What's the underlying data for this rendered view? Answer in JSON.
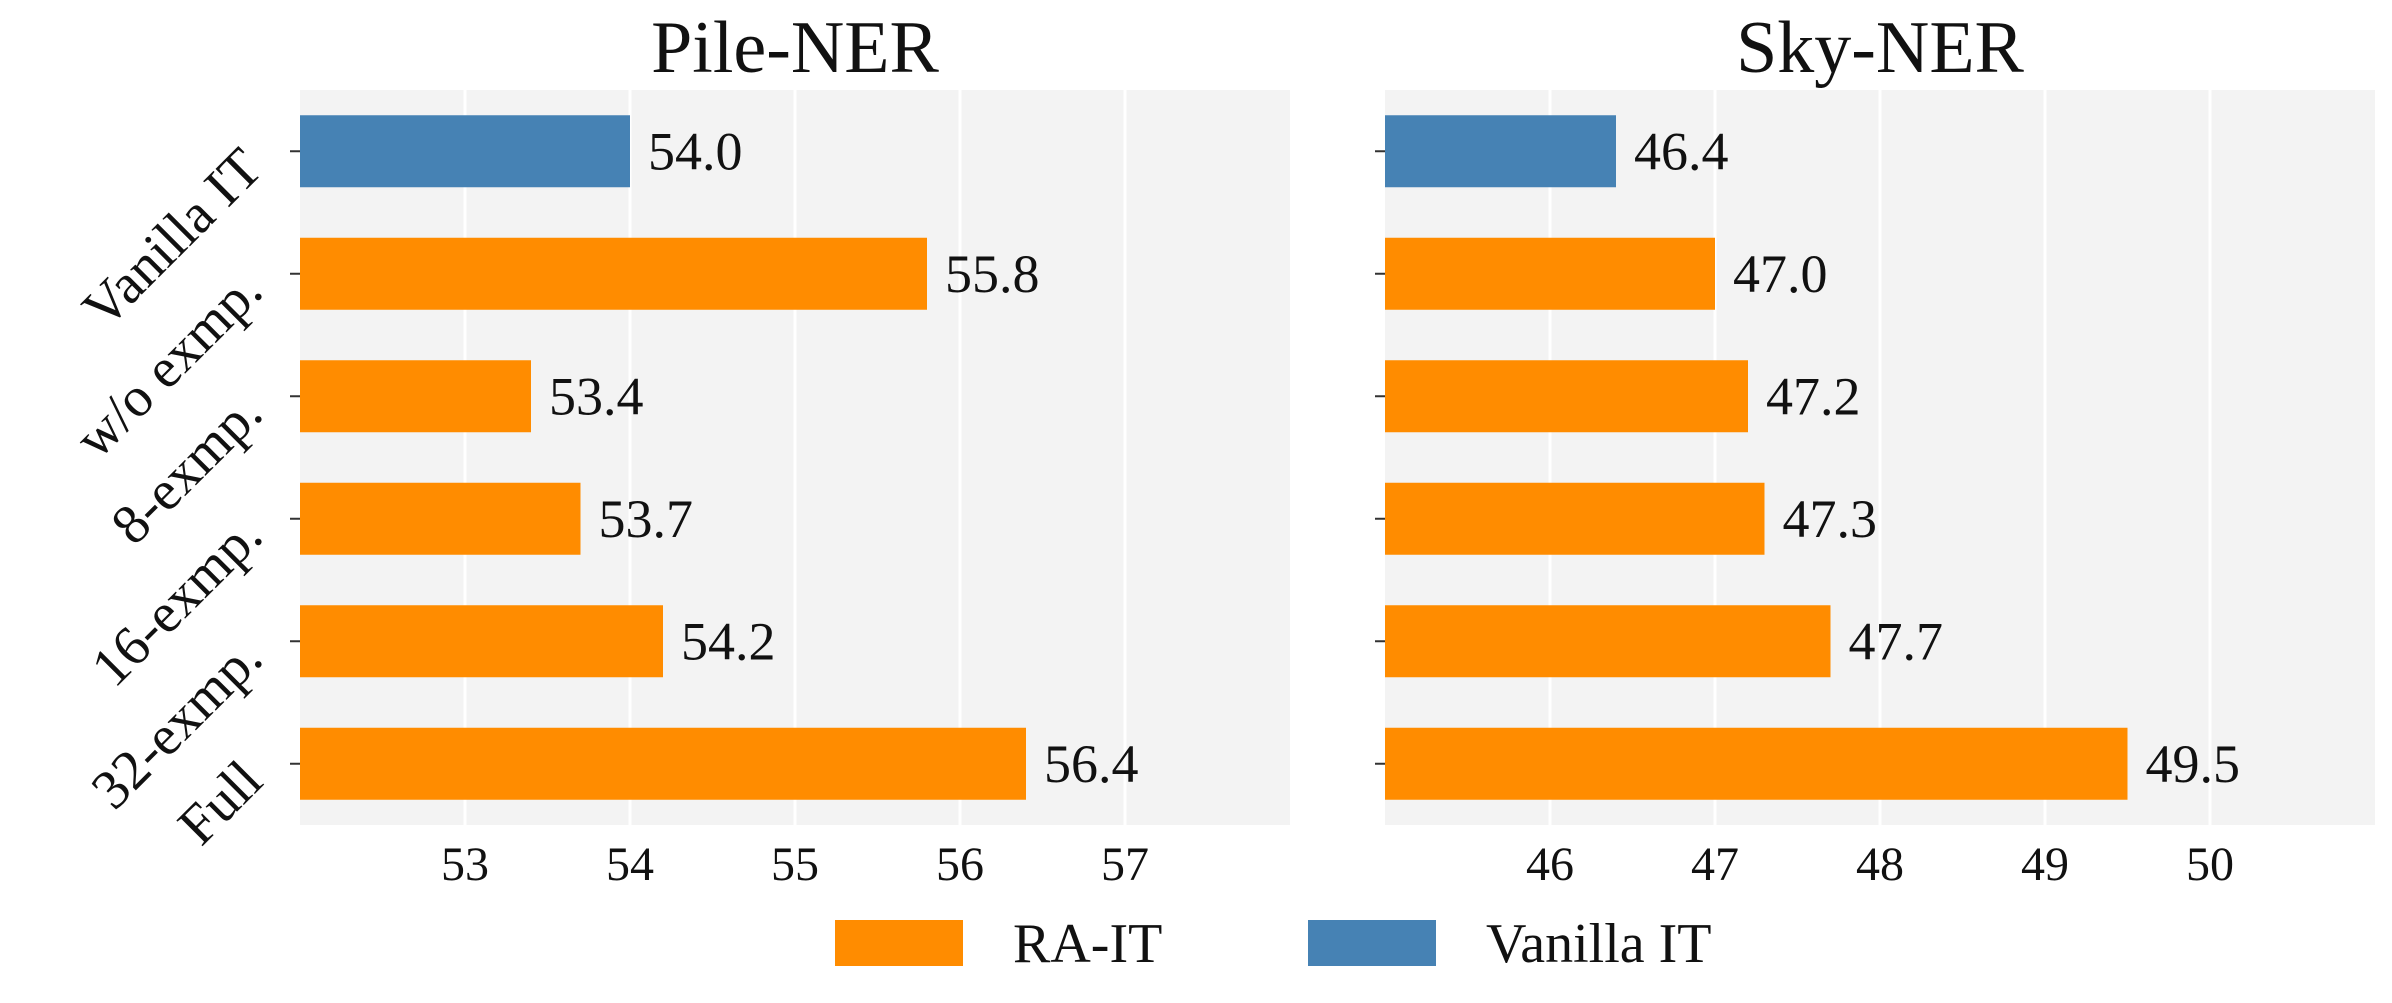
{
  "chart_data": [
    {
      "type": "bar",
      "orientation": "horizontal",
      "title": "Pile-NER",
      "categories": [
        "Vanilla IT",
        "w/o exmp.",
        "8-exmp.",
        "16-exmp.",
        "32-exmp.",
        "Full"
      ],
      "values": [
        54.0,
        55.8,
        53.4,
        53.7,
        54.2,
        56.4
      ],
      "value_labels": [
        "54.0",
        "55.8",
        "53.4",
        "53.7",
        "54.2",
        "56.4"
      ],
      "bar_series": [
        "Vanilla IT",
        "RA-IT",
        "RA-IT",
        "RA-IT",
        "RA-IT",
        "RA-IT"
      ],
      "xlim": [
        52,
        58
      ],
      "xticks": [
        53,
        54,
        55,
        56,
        57
      ],
      "xtick_labels": [
        "53",
        "54",
        "55",
        "56",
        "57"
      ],
      "grid": "x"
    },
    {
      "type": "bar",
      "orientation": "horizontal",
      "title": "Sky-NER",
      "categories": [
        "Vanilla IT",
        "w/o exmp.",
        "8-exmp.",
        "16-exmp.",
        "32-exmp.",
        "Full"
      ],
      "values": [
        46.4,
        47.0,
        47.2,
        47.3,
        47.7,
        49.5
      ],
      "value_labels": [
        "46.4",
        "47.0",
        "47.2",
        "47.3",
        "47.7",
        "49.5"
      ],
      "bar_series": [
        "Vanilla IT",
        "RA-IT",
        "RA-IT",
        "RA-IT",
        "RA-IT",
        "RA-IT"
      ],
      "xlim": [
        45,
        51
      ],
      "xticks": [
        46,
        47,
        48,
        49,
        50
      ],
      "xtick_labels": [
        "46",
        "47",
        "48",
        "49",
        "50"
      ],
      "grid": "x"
    }
  ],
  "legend": {
    "placement": "bottom-center",
    "entries": [
      {
        "label": "RA-IT",
        "color": "#ff8c00"
      },
      {
        "label": "Vanilla IT",
        "color": "#4682b4"
      }
    ]
  },
  "colors": {
    "RA-IT": "#ff8c00",
    "Vanilla IT": "#4682b4",
    "panel_bg": "#f3f3f3",
    "grid": "#ffffff"
  }
}
